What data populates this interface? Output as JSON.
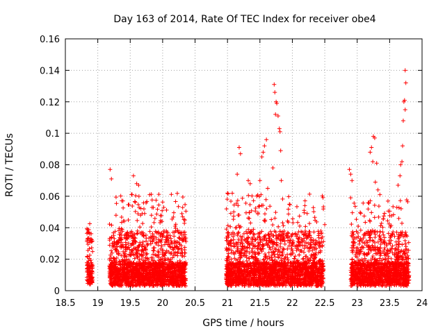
{
  "chart_data": {
    "type": "scatter",
    "title": "Day 163 of 2014, Rate Of TEC Index for receiver obe4",
    "xlabel": "GPS time / hours",
    "ylabel": "ROTI / TECUs",
    "xlim": [
      18.5,
      24
    ],
    "ylim": [
      0,
      0.16
    ],
    "grid": true,
    "marker": "+",
    "marker_color": "#ff0000",
    "x_ticks": [
      18.5,
      19,
      19.5,
      20,
      20.5,
      21,
      21.5,
      22,
      22.5,
      23,
      23.5,
      24
    ],
    "x_tick_labels": [
      "18.5",
      "19",
      "19.5",
      "20",
      "20.5",
      "21",
      "21.5",
      "22",
      "22.5",
      "23",
      "23.5",
      "24"
    ],
    "y_ticks": [
      0,
      0.02,
      0.04,
      0.06,
      0.08,
      0.1,
      0.12,
      0.14,
      0.16
    ],
    "y_tick_labels": [
      "0",
      "0.02",
      "0.04",
      "0.06",
      "0.08",
      "0.1",
      "0.12",
      "0.14",
      "0.16"
    ],
    "clusters": [
      {
        "x_start": 18.83,
        "x_end": 18.92,
        "count": 120,
        "y_low": 0.004,
        "y_high": 0.043
      },
      {
        "x_start": 19.18,
        "x_end": 20.36,
        "count": 1700,
        "y_low": 0.003,
        "y_high": 0.062
      },
      {
        "x_start": 20.98,
        "x_end": 22.48,
        "count": 2100,
        "y_low": 0.003,
        "y_high": 0.062
      },
      {
        "x_start": 22.9,
        "x_end": 23.8,
        "count": 1300,
        "y_low": 0.003,
        "y_high": 0.058
      }
    ],
    "notable_points": [
      {
        "x": 19.19,
        "y": 0.077
      },
      {
        "x": 19.21,
        "y": 0.071
      },
      {
        "x": 19.55,
        "y": 0.073
      },
      {
        "x": 19.6,
        "y": 0.068
      },
      {
        "x": 19.63,
        "y": 0.067
      },
      {
        "x": 19.8,
        "y": 0.061
      },
      {
        "x": 21.0,
        "y": 0.062
      },
      {
        "x": 21.15,
        "y": 0.074
      },
      {
        "x": 21.18,
        "y": 0.091
      },
      {
        "x": 21.2,
        "y": 0.087
      },
      {
        "x": 21.32,
        "y": 0.07
      },
      {
        "x": 21.35,
        "y": 0.068
      },
      {
        "x": 21.5,
        "y": 0.07
      },
      {
        "x": 21.53,
        "y": 0.085
      },
      {
        "x": 21.55,
        "y": 0.088
      },
      {
        "x": 21.57,
        "y": 0.092
      },
      {
        "x": 21.6,
        "y": 0.096
      },
      {
        "x": 21.62,
        "y": 0.065
      },
      {
        "x": 21.72,
        "y": 0.131
      },
      {
        "x": 21.73,
        "y": 0.126
      },
      {
        "x": 21.75,
        "y": 0.12
      },
      {
        "x": 21.76,
        "y": 0.119
      },
      {
        "x": 21.74,
        "y": 0.112
      },
      {
        "x": 21.78,
        "y": 0.111
      },
      {
        "x": 21.8,
        "y": 0.103
      },
      {
        "x": 21.81,
        "y": 0.101
      },
      {
        "x": 21.82,
        "y": 0.089
      },
      {
        "x": 21.83,
        "y": 0.07
      },
      {
        "x": 21.7,
        "y": 0.078
      },
      {
        "x": 22.5,
        "y": 0.042
      },
      {
        "x": 22.88,
        "y": 0.077
      },
      {
        "x": 22.9,
        "y": 0.074
      },
      {
        "x": 22.92,
        "y": 0.07
      },
      {
        "x": 22.9,
        "y": 0.059
      },
      {
        "x": 23.2,
        "y": 0.088
      },
      {
        "x": 23.22,
        "y": 0.091
      },
      {
        "x": 23.25,
        "y": 0.098
      },
      {
        "x": 23.27,
        "y": 0.097
      },
      {
        "x": 23.3,
        "y": 0.081
      },
      {
        "x": 23.24,
        "y": 0.082
      },
      {
        "x": 23.28,
        "y": 0.069
      },
      {
        "x": 23.32,
        "y": 0.064
      },
      {
        "x": 23.35,
        "y": 0.061
      },
      {
        "x": 23.63,
        "y": 0.067
      },
      {
        "x": 23.66,
        "y": 0.073
      },
      {
        "x": 23.67,
        "y": 0.08
      },
      {
        "x": 23.69,
        "y": 0.082
      },
      {
        "x": 23.7,
        "y": 0.092
      },
      {
        "x": 23.71,
        "y": 0.108
      },
      {
        "x": 23.72,
        "y": 0.12
      },
      {
        "x": 23.73,
        "y": 0.121
      },
      {
        "x": 23.74,
        "y": 0.115
      },
      {
        "x": 23.75,
        "y": 0.132
      },
      {
        "x": 23.74,
        "y": 0.14
      }
    ]
  }
}
